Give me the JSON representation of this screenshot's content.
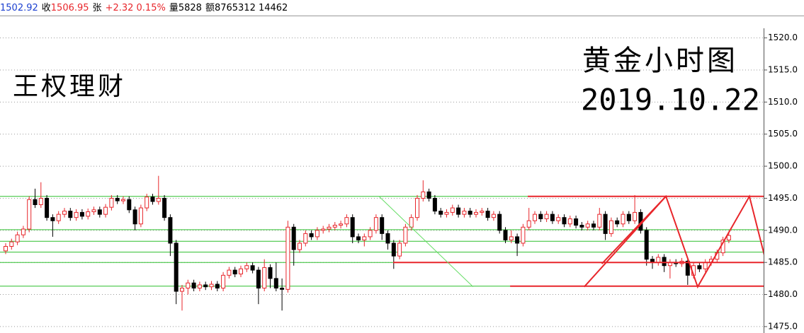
{
  "chart_data": {
    "type": "candlestick",
    "header": [
      {
        "text": "1502.92",
        "color": "#1a3fd0"
      },
      {
        "text": "收",
        "color": "#000000"
      },
      {
        "text": "1506.95",
        "color": "#e8262b"
      },
      {
        "text": "张",
        "color": "#000000"
      },
      {
        "text": "+2.32 0.15%",
        "color": "#e8262b"
      },
      {
        "text": "量5828",
        "color": "#000000"
      },
      {
        "text": "额8765312 14462",
        "color": "#000000"
      }
    ],
    "annotations": [
      "王权理财",
      "黄金小时图",
      "2019.10.22"
    ],
    "up_color": "#e8262b",
    "down_color": "#000000",
    "ylim": [
      1474,
      1521.5
    ],
    "yticks": [
      {
        "value": 1475,
        "label": "1475.0"
      },
      {
        "value": 1480,
        "label": "1480.0"
      },
      {
        "value": 1485,
        "label": "1485.0"
      },
      {
        "value": 1490,
        "label": "1490.0"
      },
      {
        "value": 1495,
        "label": "1495.0"
      },
      {
        "value": 1500,
        "label": "1500.0"
      },
      {
        "value": 1505,
        "label": "1505.0"
      },
      {
        "value": 1510,
        "label": "1510.0"
      },
      {
        "value": 1515,
        "label": "1515.0"
      },
      {
        "value": 1520,
        "label": "1520.0"
      }
    ],
    "grid": true,
    "ohlc": [
      [
        1486.8,
        1488.0,
        1486.3,
        1487.5
      ],
      [
        1487.5,
        1488.7,
        1487.0,
        1488.2
      ],
      [
        1488.2,
        1489.8,
        1487.7,
        1489.3
      ],
      [
        1489.3,
        1490.7,
        1488.8,
        1490.2
      ],
      [
        1490.2,
        1495.3,
        1489.7,
        1494.8
      ],
      [
        1494.8,
        1496.5,
        1493.5,
        1494.0
      ],
      [
        1494.0,
        1497.5,
        1493.5,
        1495.0
      ],
      [
        1495.0,
        1495.5,
        1491.5,
        1492.0
      ],
      [
        1492.0,
        1492.5,
        1489.0,
        1491.5
      ],
      [
        1491.5,
        1493.0,
        1491.0,
        1492.5
      ],
      [
        1492.5,
        1493.5,
        1492.0,
        1493.0
      ],
      [
        1493.0,
        1493.5,
        1491.5,
        1492.0
      ],
      [
        1492.0,
        1493.3,
        1491.5,
        1492.8
      ],
      [
        1492.8,
        1493.3,
        1491.7,
        1492.2
      ],
      [
        1492.2,
        1493.4,
        1491.7,
        1492.9
      ],
      [
        1492.9,
        1493.7,
        1492.4,
        1493.2
      ],
      [
        1493.2,
        1493.7,
        1492.0,
        1492.5
      ],
      [
        1492.5,
        1494.1,
        1492.0,
        1493.6
      ],
      [
        1493.6,
        1495.5,
        1493.1,
        1495.0
      ],
      [
        1495.0,
        1495.5,
        1494.1,
        1494.6
      ],
      [
        1494.6,
        1495.3,
        1494.1,
        1494.8
      ],
      [
        1494.8,
        1495.3,
        1492.7,
        1493.2
      ],
      [
        1493.2,
        1493.7,
        1490.0,
        1491.0
      ],
      [
        1491.0,
        1494.0,
        1490.5,
        1493.5
      ],
      [
        1493.5,
        1495.7,
        1493.0,
        1495.2
      ],
      [
        1495.2,
        1495.7,
        1494.0,
        1494.5
      ],
      [
        1494.5,
        1498.5,
        1494.0,
        1495.0
      ],
      [
        1495.0,
        1495.5,
        1491.5,
        1492.0
      ],
      [
        1492.0,
        1492.5,
        1486.0,
        1488.0
      ],
      [
        1488.0,
        1488.5,
        1478.5,
        1480.5
      ],
      [
        1480.5,
        1481.5,
        1477.5,
        1481.0
      ],
      [
        1481.0,
        1482.3,
        1480.0,
        1481.8
      ],
      [
        1481.8,
        1482.3,
        1480.5,
        1481.0
      ],
      [
        1481.0,
        1482.0,
        1480.5,
        1481.5
      ],
      [
        1481.5,
        1482.0,
        1480.7,
        1481.2
      ],
      [
        1481.2,
        1482.1,
        1480.7,
        1481.6
      ],
      [
        1481.6,
        1482.1,
        1480.5,
        1481.0
      ],
      [
        1481.0,
        1483.5,
        1480.5,
        1483.0
      ],
      [
        1483.0,
        1484.3,
        1482.5,
        1483.8
      ],
      [
        1483.8,
        1484.3,
        1482.7,
        1483.2
      ],
      [
        1483.2,
        1484.5,
        1482.7,
        1484.0
      ],
      [
        1484.0,
        1485.0,
        1483.5,
        1484.5
      ],
      [
        1484.5,
        1485.0,
        1483.3,
        1483.8
      ],
      [
        1483.8,
        1484.3,
        1478.5,
        1481.0
      ],
      [
        1481.0,
        1485.5,
        1480.5,
        1484.2
      ],
      [
        1484.2,
        1484.7,
        1481.0,
        1482.5
      ],
      [
        1482.5,
        1485.0,
        1480.5,
        1481.0
      ],
      [
        1481.0,
        1482.5,
        1477.5,
        1480.8
      ],
      [
        1480.8,
        1491.5,
        1480.3,
        1490.5
      ],
      [
        1490.5,
        1491.0,
        1484.5,
        1487.0
      ],
      [
        1487.0,
        1488.5,
        1486.5,
        1488.0
      ],
      [
        1488.0,
        1490.0,
        1487.5,
        1489.5
      ],
      [
        1489.5,
        1490.0,
        1488.5,
        1489.0
      ],
      [
        1489.0,
        1490.5,
        1488.5,
        1490.0
      ],
      [
        1490.0,
        1490.7,
        1489.5,
        1490.2
      ],
      [
        1490.2,
        1491.0,
        1489.7,
        1490.5
      ],
      [
        1490.5,
        1491.3,
        1490.0,
        1490.8
      ],
      [
        1490.8,
        1491.5,
        1490.3,
        1491.0
      ],
      [
        1491.0,
        1492.5,
        1490.5,
        1492.0
      ],
      [
        1492.0,
        1492.5,
        1488.0,
        1489.0
      ],
      [
        1489.0,
        1489.5,
        1488.0,
        1488.5
      ],
      [
        1488.5,
        1489.5,
        1487.5,
        1489.0
      ],
      [
        1489.0,
        1490.5,
        1488.5,
        1490.0
      ],
      [
        1490.0,
        1492.5,
        1489.5,
        1492.0
      ],
      [
        1492.0,
        1492.5,
        1488.5,
        1489.5
      ],
      [
        1489.5,
        1490.0,
        1487.0,
        1488.0
      ],
      [
        1488.0,
        1488.5,
        1484.0,
        1486.0
      ],
      [
        1486.0,
        1488.5,
        1485.5,
        1488.0
      ],
      [
        1488.0,
        1491.0,
        1487.5,
        1490.5
      ],
      [
        1490.5,
        1492.5,
        1490.0,
        1492.0
      ],
      [
        1492.0,
        1495.5,
        1491.5,
        1495.0
      ],
      [
        1495.0,
        1497.8,
        1494.5,
        1496.0
      ],
      [
        1496.0,
        1496.5,
        1494.5,
        1495.0
      ],
      [
        1495.0,
        1495.5,
        1492.5,
        1493.0
      ],
      [
        1493.0,
        1493.5,
        1492.0,
        1492.5
      ],
      [
        1492.5,
        1493.3,
        1492.0,
        1492.8
      ],
      [
        1492.8,
        1494.0,
        1492.3,
        1493.5
      ],
      [
        1493.5,
        1494.0,
        1492.0,
        1492.5
      ],
      [
        1492.5,
        1493.5,
        1492.0,
        1493.0
      ],
      [
        1493.0,
        1493.5,
        1492.0,
        1492.5
      ],
      [
        1492.5,
        1493.3,
        1492.0,
        1492.8
      ],
      [
        1492.8,
        1493.5,
        1492.3,
        1493.0
      ],
      [
        1493.0,
        1493.5,
        1491.5,
        1492.0
      ],
      [
        1492.0,
        1493.0,
        1491.5,
        1492.5
      ],
      [
        1492.5,
        1493.0,
        1489.5,
        1490.0
      ],
      [
        1490.0,
        1490.5,
        1488.0,
        1488.5
      ],
      [
        1488.5,
        1490.0,
        1488.0,
        1489.0
      ],
      [
        1489.0,
        1489.5,
        1486.0,
        1488.0
      ],
      [
        1488.0,
        1491.0,
        1487.5,
        1490.5
      ],
      [
        1490.5,
        1493.5,
        1490.0,
        1491.5
      ],
      [
        1491.5,
        1493.0,
        1491.0,
        1492.5
      ],
      [
        1492.5,
        1493.0,
        1491.3,
        1491.8
      ],
      [
        1491.8,
        1493.0,
        1491.3,
        1492.5
      ],
      [
        1492.5,
        1493.0,
        1491.0,
        1491.5
      ],
      [
        1491.5,
        1492.5,
        1491.0,
        1492.0
      ],
      [
        1492.0,
        1492.5,
        1490.5,
        1491.0
      ],
      [
        1491.0,
        1492.3,
        1490.5,
        1491.8
      ],
      [
        1491.8,
        1492.3,
        1490.3,
        1490.8
      ],
      [
        1490.8,
        1491.3,
        1490.0,
        1490.5
      ],
      [
        1490.5,
        1491.5,
        1490.0,
        1491.0
      ],
      [
        1491.0,
        1491.5,
        1490.0,
        1490.5
      ],
      [
        1490.5,
        1493.5,
        1490.0,
        1492.5
      ],
      [
        1492.5,
        1493.0,
        1488.5,
        1489.5
      ],
      [
        1489.5,
        1492.0,
        1489.0,
        1491.5
      ],
      [
        1491.5,
        1492.0,
        1490.5,
        1491.0
      ],
      [
        1491.0,
        1493.0,
        1490.5,
        1492.5
      ],
      [
        1492.5,
        1493.0,
        1491.0,
        1491.5
      ],
      [
        1491.5,
        1495.5,
        1491.0,
        1492.8
      ],
      [
        1492.8,
        1493.3,
        1489.5,
        1490.0
      ],
      [
        1490.0,
        1490.5,
        1484.5,
        1485.5
      ],
      [
        1485.5,
        1486.0,
        1484.0,
        1485.0
      ],
      [
        1485.0,
        1486.3,
        1484.5,
        1485.8
      ],
      [
        1485.8,
        1486.3,
        1483.5,
        1484.5
      ],
      [
        1484.5,
        1485.5,
        1482.5,
        1485.0
      ],
      [
        1485.0,
        1485.5,
        1484.3,
        1484.8
      ],
      [
        1484.8,
        1485.7,
        1484.3,
        1485.2
      ],
      [
        1485.2,
        1485.7,
        1481.5,
        1483.0
      ],
      [
        1483.0,
        1485.0,
        1482.5,
        1484.5
      ],
      [
        1484.5,
        1485.0,
        1483.5,
        1484.0
      ],
      [
        1484.0,
        1485.5,
        1483.5,
        1485.0
      ],
      [
        1485.0,
        1486.0,
        1484.5,
        1485.5
      ],
      [
        1485.5,
        1487.0,
        1485.0,
        1486.5
      ],
      [
        1486.5,
        1489.0,
        1486.0,
        1488.5
      ],
      [
        1488.5,
        1489.7,
        1488.0,
        1489.2
      ]
    ],
    "levels": {
      "color": "#2fbf2f",
      "prices": [
        1495.3,
        1490.1,
        1488.3,
        1486.6,
        1485.0,
        1481.3
      ]
    },
    "rays": {
      "color": "#e8262b",
      "items": [
        {
          "start": 88.8,
          "price": 1495.3
        },
        {
          "start": 65.9,
          "price": 1485.0
        },
        {
          "start": 85.8,
          "price": 1481.3
        }
      ]
    },
    "polylines": [
      {
        "color": "#e8262b",
        "x": [
          98.4,
          112.3,
          117.7,
          126.5,
          130.4
        ],
        "y": [
          1481.2,
          1495.3,
          1481.2,
          1495.3,
          1481.2
        ]
      },
      {
        "color": "#e8262b",
        "x": [
          101.4,
          112.3
        ],
        "y": [
          1484.8,
          1495.3
        ]
      },
      {
        "color": "#66dd66",
        "x": [
          63.5,
          79.5
        ],
        "y": [
          1495.3,
          1481.2
        ]
      }
    ]
  }
}
